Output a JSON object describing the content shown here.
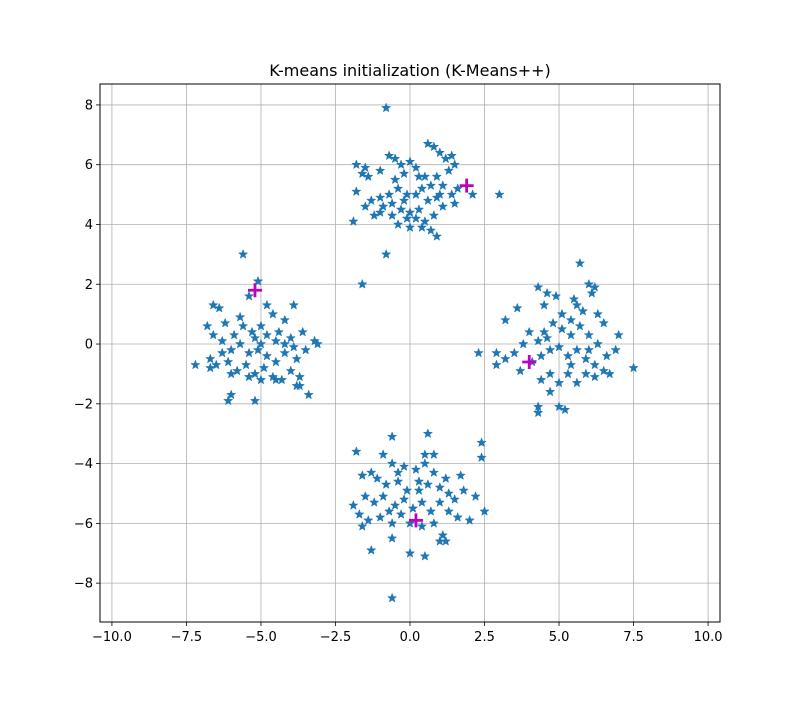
{
  "chart_data": {
    "type": "scatter",
    "title": "K-means initialization (K-Means++)",
    "xlabel": "",
    "ylabel": "",
    "xlim": [
      -10.4,
      10.4
    ],
    "ylim": [
      -9.3,
      8.7
    ],
    "xticks": [
      -10,
      -7.5,
      -5,
      -2.5,
      0,
      2.5,
      5,
      7.5,
      10
    ],
    "xtick_labels": [
      "−10.0",
      "−7.5",
      "−5.0",
      "−2.5",
      "0.0",
      "2.5",
      "5.0",
      "7.5",
      "10.0"
    ],
    "yticks": [
      -8,
      -6,
      -4,
      -2,
      0,
      2,
      4,
      6,
      8
    ],
    "ytick_labels": [
      "−8",
      "−6",
      "−4",
      "−2",
      "0",
      "2",
      "4",
      "6",
      "8"
    ],
    "grid": true,
    "series": [
      {
        "marker": "star",
        "color": "#1f77b4",
        "points": [
          [
            -0.8,
            7.9
          ],
          [
            -0.7,
            6.3
          ],
          [
            -0.5,
            6.2
          ],
          [
            -0.3,
            6.0
          ],
          [
            0.0,
            6.1
          ],
          [
            -1.8,
            6.0
          ],
          [
            -1.5,
            5.9
          ],
          [
            -1.6,
            5.7
          ],
          [
            -1.4,
            5.6
          ],
          [
            -1.0,
            5.8
          ],
          [
            -0.2,
            5.7
          ],
          [
            0.2,
            5.9
          ],
          [
            0.5,
            5.6
          ],
          [
            0.6,
            6.7
          ],
          [
            0.8,
            6.6
          ],
          [
            1.0,
            6.4
          ],
          [
            1.2,
            6.2
          ],
          [
            1.4,
            6.3
          ],
          [
            1.5,
            6.0
          ],
          [
            1.3,
            5.8
          ],
          [
            1.1,
            5.3
          ],
          [
            1.4,
            5.0
          ],
          [
            1.6,
            5.2
          ],
          [
            1.5,
            4.7
          ],
          [
            2.1,
            5.0
          ],
          [
            3.0,
            5.0
          ],
          [
            0.9,
            5.6
          ],
          [
            0.7,
            5.3
          ],
          [
            0.4,
            5.2
          ],
          [
            0.2,
            5.0
          ],
          [
            -0.1,
            5.0
          ],
          [
            -0.4,
            5.2
          ],
          [
            -0.7,
            5.0
          ],
          [
            -1.0,
            4.9
          ],
          [
            -1.3,
            4.8
          ],
          [
            -1.5,
            4.6
          ],
          [
            -1.8,
            5.1
          ],
          [
            -1.2,
            4.3
          ],
          [
            -0.9,
            4.6
          ],
          [
            -0.6,
            4.7
          ],
          [
            -0.3,
            4.5
          ],
          [
            0.0,
            4.4
          ],
          [
            0.3,
            4.5
          ],
          [
            0.6,
            4.8
          ],
          [
            0.9,
            4.9
          ],
          [
            1.1,
            4.6
          ],
          [
            0.8,
            4.3
          ],
          [
            0.5,
            4.1
          ],
          [
            0.2,
            4.2
          ],
          [
            -0.1,
            4.2
          ],
          [
            -0.4,
            4.0
          ],
          [
            -0.6,
            4.3
          ],
          [
            -1.0,
            4.4
          ],
          [
            -1.9,
            4.1
          ],
          [
            0.0,
            3.9
          ],
          [
            0.7,
            3.8
          ],
          [
            0.9,
            3.6
          ],
          [
            0.4,
            3.9
          ],
          [
            -0.8,
            3.0
          ],
          [
            -1.6,
            2.0
          ],
          [
            -0.5,
            5.5
          ],
          [
            0.3,
            5.6
          ],
          [
            1.0,
            5.0
          ],
          [
            -0.2,
            4.8
          ],
          [
            -5.6,
            3.0
          ],
          [
            -5.1,
            2.1
          ],
          [
            -5.4,
            1.6
          ],
          [
            -4.8,
            1.3
          ],
          [
            -4.6,
            1.0
          ],
          [
            -4.2,
            0.8
          ],
          [
            -3.9,
            1.3
          ],
          [
            -3.6,
            0.4
          ],
          [
            -3.1,
            0.0
          ],
          [
            -3.2,
            0.1
          ],
          [
            -6.6,
            1.3
          ],
          [
            -6.4,
            1.2
          ],
          [
            -6.8,
            0.6
          ],
          [
            -6.2,
            0.7
          ],
          [
            -5.9,
            0.3
          ],
          [
            -5.6,
            0.6
          ],
          [
            -5.3,
            0.4
          ],
          [
            -5.0,
            0.6
          ],
          [
            -4.8,
            0.3
          ],
          [
            -4.5,
            0.1
          ],
          [
            -4.2,
            0.0
          ],
          [
            -3.9,
            -0.1
          ],
          [
            -6.6,
            0.3
          ],
          [
            -6.3,
            0.1
          ],
          [
            -6.0,
            -0.2
          ],
          [
            -5.7,
            0.0
          ],
          [
            -5.4,
            -0.3
          ],
          [
            -5.1,
            -0.2
          ],
          [
            -4.8,
            -0.4
          ],
          [
            -4.5,
            -0.6
          ],
          [
            -4.2,
            -0.3
          ],
          [
            -3.8,
            -0.5
          ],
          [
            -3.5,
            -0.2
          ],
          [
            -6.7,
            -0.5
          ],
          [
            -6.5,
            -0.7
          ],
          [
            -6.1,
            -0.6
          ],
          [
            -5.8,
            -0.9
          ],
          [
            -5.5,
            -0.7
          ],
          [
            -5.2,
            -1.0
          ],
          [
            -4.9,
            -0.8
          ],
          [
            -4.6,
            -1.1
          ],
          [
            -4.3,
            -1.2
          ],
          [
            -4.0,
            -0.9
          ],
          [
            -3.7,
            -1.1
          ],
          [
            -3.7,
            -1.4
          ],
          [
            -3.4,
            -1.7
          ],
          [
            -7.2,
            -0.7
          ],
          [
            -6.7,
            -0.8
          ],
          [
            -6.0,
            -1.0
          ],
          [
            -5.4,
            -1.1
          ],
          [
            -5.0,
            -1.2
          ],
          [
            -6.0,
            -1.7
          ],
          [
            -6.1,
            -1.9
          ],
          [
            -5.2,
            -1.9
          ],
          [
            -4.5,
            -1.2
          ],
          [
            -3.8,
            -1.4
          ],
          [
            -5.7,
            0.9
          ],
          [
            -5.2,
            0.2
          ],
          [
            -4.4,
            0.4
          ],
          [
            -4.0,
            0.2
          ],
          [
            -6.3,
            -0.3
          ],
          [
            -5.0,
            0.0
          ],
          [
            5.7,
            2.7
          ],
          [
            6.0,
            2.0
          ],
          [
            6.2,
            1.9
          ],
          [
            6.1,
            1.7
          ],
          [
            5.5,
            1.5
          ],
          [
            5.6,
            1.3
          ],
          [
            4.3,
            1.9
          ],
          [
            4.6,
            1.7
          ],
          [
            4.9,
            1.6
          ],
          [
            4.5,
            1.3
          ],
          [
            3.6,
            1.2
          ],
          [
            3.2,
            0.8
          ],
          [
            5.1,
            1.0
          ],
          [
            5.4,
            0.8
          ],
          [
            5.8,
            1.1
          ],
          [
            6.3,
            1.0
          ],
          [
            6.5,
            0.7
          ],
          [
            7.0,
            0.3
          ],
          [
            6.9,
            -0.2
          ],
          [
            6.6,
            -0.4
          ],
          [
            6.3,
            0.0
          ],
          [
            6.0,
            0.3
          ],
          [
            5.7,
            0.6
          ],
          [
            5.4,
            0.3
          ],
          [
            5.1,
            0.5
          ],
          [
            4.8,
            0.7
          ],
          [
            4.5,
            0.4
          ],
          [
            4.3,
            0.1
          ],
          [
            4.0,
            0.4
          ],
          [
            3.8,
            0.0
          ],
          [
            3.5,
            -0.3
          ],
          [
            3.2,
            -0.5
          ],
          [
            2.9,
            -0.3
          ],
          [
            2.3,
            -0.3
          ],
          [
            2.9,
            -0.7
          ],
          [
            3.7,
            -0.9
          ],
          [
            4.1,
            -0.6
          ],
          [
            4.4,
            -0.4
          ],
          [
            4.7,
            -0.2
          ],
          [
            5.0,
            -0.1
          ],
          [
            5.3,
            -0.4
          ],
          [
            5.6,
            -0.2
          ],
          [
            5.9,
            -0.5
          ],
          [
            6.2,
            -0.7
          ],
          [
            6.5,
            -0.9
          ],
          [
            6.7,
            -1.0
          ],
          [
            7.5,
            -0.8
          ],
          [
            6.2,
            -1.1
          ],
          [
            5.9,
            -1.0
          ],
          [
            5.6,
            -1.3
          ],
          [
            5.3,
            -1.0
          ],
          [
            5.0,
            -1.3
          ],
          [
            4.7,
            -1.0
          ],
          [
            4.4,
            -1.2
          ],
          [
            4.7,
            -1.6
          ],
          [
            5.0,
            -2.1
          ],
          [
            5.2,
            -2.2
          ],
          [
            4.3,
            -2.1
          ],
          [
            4.3,
            -2.3
          ],
          [
            5.4,
            -0.7
          ],
          [
            6.0,
            -0.2
          ],
          [
            4.6,
            0.2
          ],
          [
            -0.6,
            -3.1
          ],
          [
            0.6,
            -3.0
          ],
          [
            0.8,
            -3.7
          ],
          [
            0.5,
            -3.7
          ],
          [
            -0.9,
            -3.7
          ],
          [
            -1.3,
            -4.3
          ],
          [
            -0.6,
            -4.0
          ],
          [
            -0.2,
            -4.1
          ],
          [
            0.2,
            -4.2
          ],
          [
            0.5,
            -4.0
          ],
          [
            0.8,
            -4.3
          ],
          [
            1.2,
            -4.5
          ],
          [
            1.7,
            -4.4
          ],
          [
            2.4,
            -3.3
          ],
          [
            2.4,
            -3.8
          ],
          [
            -1.8,
            -3.6
          ],
          [
            -1.6,
            -4.4
          ],
          [
            -1.1,
            -4.5
          ],
          [
            -0.8,
            -4.7
          ],
          [
            -0.4,
            -4.6
          ],
          [
            -0.1,
            -4.9
          ],
          [
            0.3,
            -4.9
          ],
          [
            0.6,
            -4.7
          ],
          [
            1.0,
            -4.8
          ],
          [
            1.3,
            -5.0
          ],
          [
            1.8,
            -4.9
          ],
          [
            2.2,
            -5.1
          ],
          [
            2.0,
            -5.9
          ],
          [
            2.5,
            -5.6
          ],
          [
            -1.9,
            -5.4
          ],
          [
            -1.5,
            -5.1
          ],
          [
            -1.2,
            -5.3
          ],
          [
            -0.9,
            -5.1
          ],
          [
            -0.5,
            -5.4
          ],
          [
            -0.2,
            -5.2
          ],
          [
            0.1,
            -5.5
          ],
          [
            0.4,
            -5.3
          ],
          [
            0.7,
            -5.6
          ],
          [
            1.0,
            -5.3
          ],
          [
            1.3,
            -5.6
          ],
          [
            1.6,
            -5.8
          ],
          [
            -1.7,
            -5.7
          ],
          [
            -1.4,
            -5.9
          ],
          [
            -1.0,
            -5.8
          ],
          [
            -0.6,
            -6.0
          ],
          [
            -0.3,
            -5.7
          ],
          [
            0.0,
            -6.0
          ],
          [
            0.4,
            -6.1
          ],
          [
            0.8,
            -6.0
          ],
          [
            1.1,
            -6.4
          ],
          [
            1.2,
            -6.6
          ],
          [
            1.0,
            -6.6
          ],
          [
            -1.6,
            -6.1
          ],
          [
            -1.3,
            -6.9
          ],
          [
            -0.6,
            -6.5
          ],
          [
            0.0,
            -7.0
          ],
          [
            0.5,
            -7.1
          ],
          [
            -0.6,
            -8.5
          ],
          [
            -0.4,
            -4.3
          ],
          [
            0.3,
            -4.6
          ],
          [
            -0.7,
            -5.6
          ],
          [
            1.5,
            -5.2
          ]
        ]
      },
      {
        "marker": "plus",
        "color": "#bf00bf",
        "points": [
          [
            1.9,
            5.3
          ],
          [
            -5.2,
            1.8
          ],
          [
            4.0,
            -0.6
          ],
          [
            0.2,
            -5.9
          ]
        ]
      }
    ]
  }
}
